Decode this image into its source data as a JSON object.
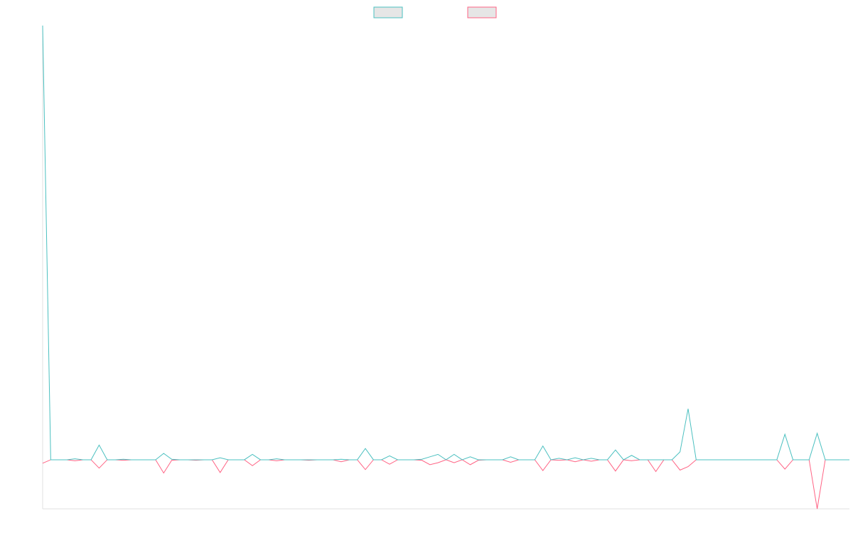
{
  "chart_data": {
    "type": "line",
    "categories": [
      null,
      null,
      null,
      null,
      null,
      null,
      null,
      null,
      null,
      null,
      null,
      null,
      null,
      null,
      null,
      null,
      null,
      null,
      null,
      null,
      null,
      null,
      null,
      null,
      null,
      null,
      null,
      null,
      null,
      null,
      null,
      null,
      null,
      null,
      null,
      null,
      null,
      null,
      null,
      null,
      null,
      null,
      null,
      null,
      null,
      null,
      null,
      null,
      null,
      null,
      null,
      null,
      null,
      null,
      null,
      null,
      null,
      null,
      null,
      null,
      null,
      null,
      null,
      null,
      null,
      null,
      null,
      null,
      null,
      null,
      null,
      null,
      null,
      null,
      null,
      null,
      null,
      null,
      null,
      null,
      null,
      null,
      null,
      null,
      null,
      null,
      null,
      null,
      null,
      null,
      null,
      null,
      null,
      null,
      null,
      null,
      null,
      null,
      null,
      null,
      null
    ],
    "series": [
      {
        "color": "#4bc0c0",
        "values": [
          88.5,
          0,
          0,
          0,
          0.2,
          0,
          0,
          3,
          0,
          0,
          0.1,
          0,
          0,
          0,
          0,
          1.3,
          0.1,
          0,
          0,
          0,
          0,
          0,
          0.4,
          0,
          0,
          0,
          1.1,
          0,
          0,
          0.2,
          0,
          0,
          0,
          0,
          0,
          0,
          0,
          0.1,
          0,
          0,
          2.3,
          0,
          0,
          0.8,
          0,
          0,
          0,
          0.1,
          0.6,
          1.1,
          0,
          1.1,
          0,
          0.6,
          0,
          0,
          0,
          0,
          0.6,
          0,
          0,
          0,
          2.8,
          0,
          0.3,
          0,
          0.4,
          0,
          0.3,
          0,
          0,
          2,
          0,
          0.9,
          0,
          0,
          0,
          0,
          0,
          1.6,
          10.4,
          0,
          0,
          0,
          0,
          0,
          0,
          0,
          0,
          0,
          0,
          0,
          5.2,
          0,
          0,
          0,
          5.4,
          0,
          0,
          0,
          0
        ]
      },
      {
        "color": "#ff6384",
        "values": [
          -0.7,
          0,
          0,
          0,
          -0.2,
          0,
          0,
          -1.7,
          0,
          0,
          -0.1,
          0,
          0,
          0,
          0,
          -2.7,
          -0.1,
          0,
          0,
          -0.1,
          0,
          0,
          -2.6,
          0,
          0,
          0,
          -1.2,
          0,
          0,
          -0.2,
          0,
          0,
          0,
          -0.1,
          0,
          0,
          0,
          -0.4,
          0,
          0,
          -2,
          0,
          0,
          -0.9,
          0,
          0,
          0,
          -0.1,
          -1,
          -0.6,
          0,
          -0.6,
          0,
          -1,
          -0.1,
          0,
          0,
          0,
          -0.5,
          0,
          0,
          0,
          -2.2,
          0,
          -0.1,
          0,
          -0.4,
          0,
          -0.3,
          0,
          0,
          -2.3,
          0,
          -0.2,
          0,
          0,
          -2.4,
          0,
          0,
          -2.1,
          -1.4,
          0,
          0,
          0,
          0,
          0,
          0,
          0,
          0,
          0,
          0,
          0,
          -1.9,
          0,
          0,
          0,
          -10,
          0,
          0,
          0,
          0
        ]
      }
    ],
    "ylim": [
      -10,
      88.5
    ],
    "legend": "top"
  }
}
